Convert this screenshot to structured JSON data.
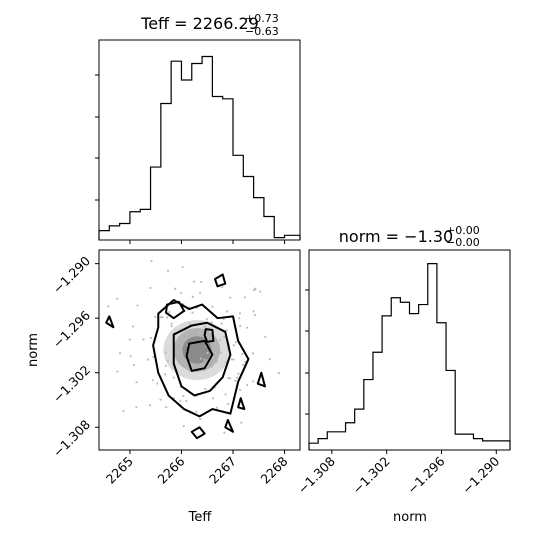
{
  "chart_data": [
    {
      "type": "histogram",
      "panel": "teff-hist",
      "param": "Teff",
      "title": {
        "name": "Teff",
        "value": "2266.29",
        "plus": "+0.73",
        "minus": "−0.63"
      },
      "xlim": [
        2264.4,
        2268.3
      ],
      "bin_edges": [
        2264.4,
        2264.6,
        2264.8,
        2265.0,
        2265.2,
        2265.4,
        2265.6,
        2265.8,
        2266.0,
        2266.2,
        2266.4,
        2266.6,
        2266.8,
        2267.0,
        2267.2,
        2267.4,
        2267.6,
        2267.8,
        2268.0,
        2268.3
      ],
      "counts": [
        4,
        6,
        7,
        12,
        13,
        31,
        58,
        76,
        68,
        75,
        78,
        61,
        60,
        36,
        27,
        18,
        10,
        1,
        2
      ],
      "ylim": [
        0,
        85
      ]
    },
    {
      "type": "histogram",
      "panel": "norm-hist",
      "param": "norm",
      "title": {
        "name": "norm",
        "value": "−1.30",
        "plus": "+0.00",
        "minus": "−0.00"
      },
      "xlim": [
        -1.3105,
        -1.2885
      ],
      "xticks": [
        -1.308,
        -1.302,
        -1.296,
        -1.29
      ],
      "xticklabels": [
        "−1.308",
        "−1.302",
        "−1.296",
        "−1.290"
      ],
      "xlabel": "norm",
      "bin_edges": [
        -1.3105,
        -1.3095,
        -1.3085,
        -1.3075,
        -1.3065,
        -1.3055,
        -1.3045,
        -1.3035,
        -1.3025,
        -1.3015,
        -1.3005,
        -1.2995,
        -1.2985,
        -1.2975,
        -1.2965,
        -1.2955,
        -1.2945,
        -1.2935,
        -1.2925,
        -1.2915,
        -1.2905,
        -1.2885
      ],
      "counts": [
        3,
        5,
        8,
        8,
        12,
        18,
        31,
        43,
        59,
        67,
        65,
        60,
        64,
        82,
        56,
        35,
        7,
        7,
        5,
        4,
        4
      ],
      "ylim": [
        0,
        88
      ]
    },
    {
      "type": "scatter_contour",
      "panel": "teff-norm",
      "xlabel": "Teff",
      "ylabel": "norm",
      "xlim": [
        2264.4,
        2268.3
      ],
      "ylim": [
        -1.3105,
        -1.2885
      ],
      "xticks": [
        2265,
        2266,
        2267,
        2268
      ],
      "xticklabels": [
        "2265",
        "2266",
        "2267",
        "2268"
      ],
      "yticks": [
        -1.29,
        -1.296,
        -1.302,
        -1.308
      ],
      "yticklabels": [
        "−1.290",
        "−1.296",
        "−1.302",
        "−1.308"
      ],
      "density_blobs": [
        {
          "x": 2266.3,
          "y": -1.2995,
          "sx": 0.65,
          "sy": 0.0033,
          "opacity": 0.14
        },
        {
          "x": 2266.3,
          "y": -1.2995,
          "sx": 0.45,
          "sy": 0.0024,
          "opacity": 0.18
        },
        {
          "x": 2266.3,
          "y": -1.2995,
          "sx": 0.28,
          "sy": 0.0015,
          "opacity": 0.22
        }
      ],
      "contours": [
        {
          "level": "outer",
          "points": [
            [
              2265.55,
              -1.2955
            ],
            [
              2265.85,
              -1.294
            ],
            [
              2266.15,
              -1.295
            ],
            [
              2266.4,
              -1.2945
            ],
            [
              2266.7,
              -1.296
            ],
            [
              2267.0,
              -1.2958
            ],
            [
              2267.1,
              -1.2985
            ],
            [
              2267.3,
              -1.3005
            ],
            [
              2267.1,
              -1.303
            ],
            [
              2266.95,
              -1.3065
            ],
            [
              2266.6,
              -1.306
            ],
            [
              2266.35,
              -1.3068
            ],
            [
              2266.05,
              -1.306
            ],
            [
              2265.75,
              -1.3045
            ],
            [
              2265.55,
              -1.302
            ],
            [
              2265.45,
              -1.299
            ],
            [
              2265.55,
              -1.297
            ]
          ]
        },
        {
          "level": "mid",
          "points": [
            [
              2265.85,
              -1.2978
            ],
            [
              2266.2,
              -1.2968
            ],
            [
              2266.5,
              -1.2965
            ],
            [
              2266.85,
              -1.2975
            ],
            [
              2266.95,
              -1.3
            ],
            [
              2266.8,
              -1.3025
            ],
            [
              2266.55,
              -1.304
            ],
            [
              2266.25,
              -1.3045
            ],
            [
              2266.0,
              -1.3035
            ],
            [
              2265.85,
              -1.301
            ]
          ]
        },
        {
          "level": "inner",
          "points": [
            [
              2266.15,
              -1.2988
            ],
            [
              2266.45,
              -1.2985
            ],
            [
              2266.6,
              -1.3
            ],
            [
              2266.45,
              -1.3015
            ],
            [
              2266.2,
              -1.3018
            ],
            [
              2266.1,
              -1.3002
            ]
          ]
        },
        {
          "level": "core",
          "points": [
            [
              2266.47,
              -1.2972
            ],
            [
              2266.6,
              -1.2973
            ],
            [
              2266.62,
              -1.2985
            ],
            [
              2266.5,
              -1.2986
            ],
            [
              2266.45,
              -1.2979
            ]
          ]
        },
        {
          "level": "upper-island",
          "points": [
            [
              2265.72,
              -1.2945
            ],
            [
              2265.95,
              -1.2942
            ],
            [
              2266.05,
              -1.2952
            ],
            [
              2265.85,
              -1.296
            ],
            [
              2265.7,
              -1.2954
            ]
          ]
        },
        {
          "level": "left-island",
          "points": [
            [
              2264.6,
              -1.2958
            ],
            [
              2264.68,
              -1.297
            ],
            [
              2264.54,
              -1.2965
            ]
          ]
        },
        {
          "level": "top-island",
          "points": [
            [
              2266.65,
              -1.2917
            ],
            [
              2266.8,
              -1.2912
            ],
            [
              2266.85,
              -1.2922
            ],
            [
              2266.7,
              -1.2925
            ]
          ]
        },
        {
          "level": "bottom-island",
          "points": [
            [
              2266.2,
              -1.3085
            ],
            [
              2266.35,
              -1.308
            ],
            [
              2266.45,
              -1.3087
            ],
            [
              2266.3,
              -1.3092
            ]
          ]
        },
        {
          "level": "right-island-1",
          "points": [
            [
              2267.15,
              -1.3048
            ],
            [
              2267.22,
              -1.306
            ],
            [
              2267.1,
              -1.3058
            ]
          ]
        },
        {
          "level": "right-island-2",
          "points": [
            [
              2266.9,
              -1.3072
            ],
            [
              2267.0,
              -1.3085
            ],
            [
              2266.85,
              -1.308
            ]
          ]
        },
        {
          "level": "far-right-island",
          "points": [
            [
              2267.55,
              -1.302
            ],
            [
              2267.62,
              -1.3035
            ],
            [
              2267.48,
              -1.3032
            ]
          ]
        }
      ],
      "points_count": 140
    }
  ]
}
